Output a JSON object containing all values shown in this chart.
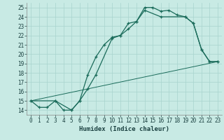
{
  "xlabel": "Humidex (Indice chaleur)",
  "ylabel": "",
  "bg_color": "#c8eae4",
  "grid_color": "#a8d4ce",
  "line_color": "#1a6b5a",
  "xlim": [
    -0.5,
    23.5
  ],
  "ylim": [
    13.5,
    25.5
  ],
  "xticks": [
    0,
    1,
    2,
    3,
    4,
    5,
    6,
    7,
    8,
    9,
    10,
    11,
    12,
    13,
    14,
    15,
    16,
    17,
    18,
    19,
    20,
    21,
    22,
    23
  ],
  "yticks": [
    14,
    15,
    16,
    17,
    18,
    19,
    20,
    21,
    22,
    23,
    24,
    25
  ],
  "line1_x": [
    0,
    1,
    2,
    3,
    4,
    5,
    6,
    7,
    8,
    9,
    10,
    11,
    12,
    13,
    14,
    15,
    16,
    17,
    18,
    19,
    20,
    21,
    22,
    23
  ],
  "line1_y": [
    15.0,
    14.3,
    14.3,
    15.0,
    14.0,
    14.0,
    15.0,
    17.8,
    19.7,
    21.0,
    21.8,
    22.0,
    23.3,
    23.5,
    25.0,
    25.0,
    24.6,
    24.7,
    24.2,
    24.0,
    23.3,
    20.5,
    19.2,
    19.2
  ],
  "line2_x": [
    0,
    3,
    5,
    6,
    7,
    8,
    10,
    11,
    12,
    13,
    14,
    16,
    19,
    20,
    21,
    22,
    23
  ],
  "line2_y": [
    15.0,
    15.0,
    14.0,
    15.0,
    16.3,
    17.8,
    21.7,
    22.0,
    22.7,
    23.5,
    24.7,
    24.0,
    24.0,
    23.3,
    20.5,
    19.2,
    19.2
  ],
  "line3_x": [
    0,
    23
  ],
  "line3_y": [
    15.0,
    19.2
  ]
}
